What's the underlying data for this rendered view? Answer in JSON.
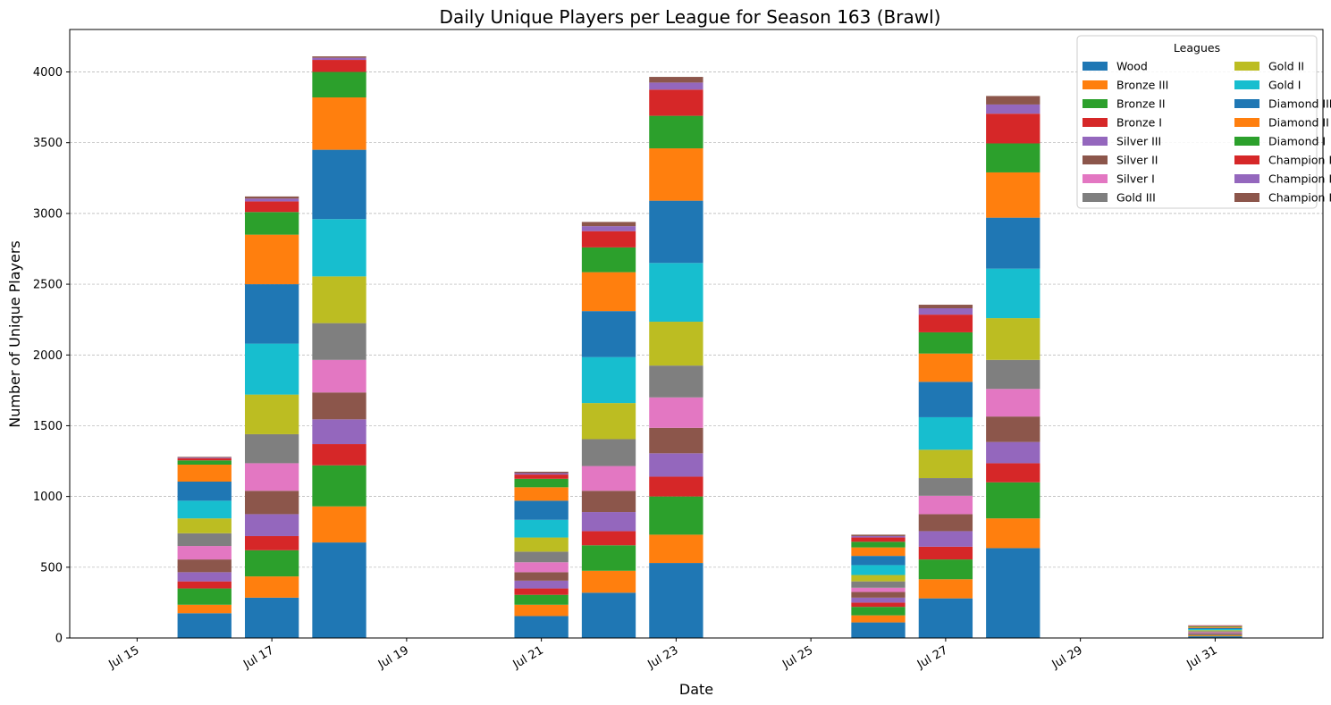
{
  "chart_data": {
    "type": "bar",
    "stacked": true,
    "title": "Daily Unique Players per League for Season 163 (Brawl)",
    "xlabel": "Date",
    "ylabel": "Number of Unique Players",
    "ylim": [
      0,
      4300
    ],
    "yticks": [
      0,
      500,
      1000,
      1500,
      2000,
      2500,
      3000,
      3500,
      4000
    ],
    "grid": "y-dashed",
    "x_range_days": [
      14.0,
      32.6
    ],
    "xticks": [
      {
        "day": 15,
        "label": "Jul 15"
      },
      {
        "day": 17,
        "label": "Jul 17"
      },
      {
        "day": 19,
        "label": "Jul 19"
      },
      {
        "day": 21,
        "label": "Jul 21"
      },
      {
        "day": 23,
        "label": "Jul 23"
      },
      {
        "day": 25,
        "label": "Jul 25"
      },
      {
        "day": 27,
        "label": "Jul 27"
      },
      {
        "day": 29,
        "label": "Jul 29"
      },
      {
        "day": 31,
        "label": "Jul 31"
      }
    ],
    "categories": [
      "Jul 16",
      "Jul 17",
      "Jul 18",
      "Jul 21",
      "Jul 22",
      "Jul 23",
      "Jul 26",
      "Jul 27",
      "Jul 28",
      "Jul 31"
    ],
    "category_days": [
      16,
      17,
      18,
      21,
      22,
      23,
      26,
      27,
      28,
      31
    ],
    "legend": {
      "title": "Leagues",
      "placement": "top-right",
      "columns": 2
    },
    "series": [
      {
        "name": "Wood",
        "color": "#1f77b4",
        "values": [
          175,
          285,
          675,
          155,
          320,
          530,
          110,
          280,
          635,
          12
        ]
      },
      {
        "name": "Bronze III",
        "color": "#ff7f0e",
        "values": [
          60,
          150,
          255,
          80,
          155,
          200,
          50,
          135,
          210,
          6
        ]
      },
      {
        "name": "Bronze II",
        "color": "#2ca02c",
        "values": [
          115,
          185,
          290,
          70,
          180,
          270,
          60,
          140,
          255,
          5
        ]
      },
      {
        "name": "Bronze I",
        "color": "#d62728",
        "values": [
          50,
          100,
          150,
          45,
          100,
          140,
          30,
          90,
          135,
          4
        ]
      },
      {
        "name": "Silver III",
        "color": "#9467bd",
        "values": [
          65,
          155,
          175,
          55,
          135,
          165,
          35,
          110,
          150,
          5
        ]
      },
      {
        "name": "Silver II",
        "color": "#8c564b",
        "values": [
          90,
          165,
          190,
          60,
          150,
          180,
          40,
          120,
          180,
          5
        ]
      },
      {
        "name": "Silver I",
        "color": "#e377c2",
        "values": [
          95,
          195,
          230,
          70,
          175,
          215,
          30,
          130,
          195,
          5
        ]
      },
      {
        "name": "Gold III",
        "color": "#7f7f7f",
        "values": [
          90,
          205,
          260,
          75,
          190,
          225,
          45,
          125,
          205,
          6
        ]
      },
      {
        "name": "Gold II",
        "color": "#bcbd22",
        "values": [
          105,
          280,
          330,
          100,
          255,
          310,
          45,
          200,
          295,
          7
        ]
      },
      {
        "name": "Gold I",
        "color": "#17becf",
        "values": [
          125,
          360,
          405,
          125,
          325,
          415,
          70,
          230,
          350,
          8
        ]
      },
      {
        "name": "Diamond III",
        "color": "#1f77b4",
        "values": [
          135,
          420,
          490,
          135,
          325,
          440,
          65,
          250,
          360,
          8
        ]
      },
      {
        "name": "Diamond II",
        "color": "#ff7f0e",
        "values": [
          120,
          350,
          370,
          95,
          275,
          370,
          60,
          200,
          320,
          7
        ]
      },
      {
        "name": "Diamond I",
        "color": "#2ca02c",
        "values": [
          30,
          160,
          180,
          60,
          175,
          230,
          40,
          150,
          205,
          5
        ]
      },
      {
        "name": "Champion III",
        "color": "#d62728",
        "values": [
          15,
          75,
          85,
          30,
          115,
          185,
          30,
          125,
          210,
          4
        ]
      },
      {
        "name": "Champion II",
        "color": "#9467bd",
        "values": [
          5,
          20,
          15,
          10,
          35,
          50,
          10,
          45,
          65,
          2
        ]
      },
      {
        "name": "Champion I",
        "color": "#8c564b",
        "values": [
          5,
          15,
          10,
          10,
          30,
          40,
          10,
          25,
          60,
          1
        ]
      }
    ]
  }
}
